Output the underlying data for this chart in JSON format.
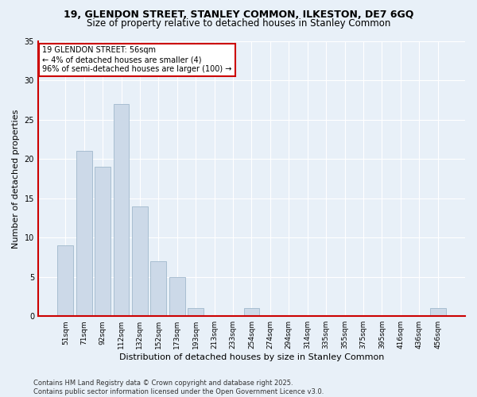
{
  "title1": "19, GLENDON STREET, STANLEY COMMON, ILKESTON, DE7 6GQ",
  "title2": "Size of property relative to detached houses in Stanley Common",
  "xlabel": "Distribution of detached houses by size in Stanley Common",
  "ylabel": "Number of detached properties",
  "categories": [
    "51sqm",
    "71sqm",
    "92sqm",
    "112sqm",
    "132sqm",
    "152sqm",
    "173sqm",
    "193sqm",
    "213sqm",
    "233sqm",
    "254sqm",
    "274sqm",
    "294sqm",
    "314sqm",
    "335sqm",
    "355sqm",
    "375sqm",
    "395sqm",
    "416sqm",
    "436sqm",
    "456sqm"
  ],
  "values": [
    9,
    21,
    19,
    27,
    14,
    7,
    5,
    1,
    0,
    0,
    1,
    0,
    0,
    0,
    0,
    0,
    0,
    0,
    0,
    0,
    1
  ],
  "bar_color": "#ccd9e8",
  "bar_edge_color": "#a0b8cc",
  "highlight_edge_color": "#cc0000",
  "annotation_box_text": "19 GLENDON STREET: 56sqm\n← 4% of detached houses are smaller (4)\n96% of semi-detached houses are larger (100) →",
  "annotation_box_edge_color": "#cc0000",
  "ylim": [
    0,
    35
  ],
  "yticks": [
    0,
    5,
    10,
    15,
    20,
    25,
    30,
    35
  ],
  "footer": "Contains HM Land Registry data © Crown copyright and database right 2025.\nContains public sector information licensed under the Open Government Licence v3.0.",
  "bg_color": "#e8f0f8",
  "plot_bg_color": "#e8f0f8",
  "grid_color": "#ffffff",
  "title_fontsize": 9,
  "subtitle_fontsize": 8.5,
  "tick_fontsize": 6.5,
  "ylabel_fontsize": 8,
  "xlabel_fontsize": 8,
  "footer_fontsize": 6
}
